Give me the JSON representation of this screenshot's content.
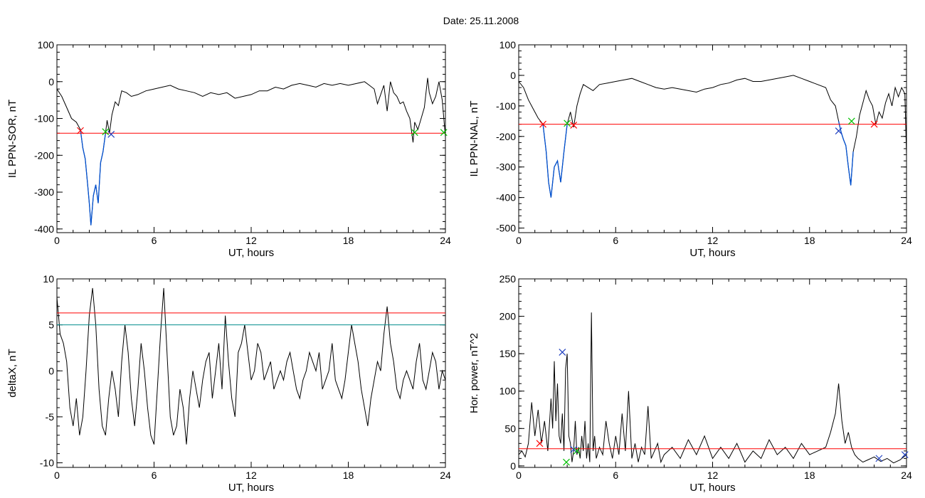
{
  "figure": {
    "date_text": "Date:  25.11.2008"
  },
  "colors": {
    "trace": "#000000",
    "threshold": "#ff0000",
    "secondary": "#008b8b",
    "highlight": "#0050d0",
    "marker_red": "#ff0000",
    "marker_green": "#00c000",
    "marker_blue": "#2040c0"
  },
  "chart_data": [
    {
      "id": "ppn-sor",
      "type": "line",
      "title": "",
      "xlabel": "UT, hours",
      "ylabel": "IL PPN-SOR, nT",
      "xlim": [
        0,
        24
      ],
      "ylim": [
        -410,
        100
      ],
      "xticks": [
        0,
        6,
        12,
        18,
        24
      ],
      "yticks": [
        100,
        0,
        -100,
        -200,
        -300,
        -400
      ],
      "hlines": [
        {
          "y": -140,
          "color": "#ff0000"
        }
      ],
      "series": [
        {
          "color": "#000000",
          "x": [
            0,
            0.3,
            0.6,
            0.9,
            1.2,
            1.45,
            1.6,
            1.75,
            1.9,
            2.0,
            2.1,
            2.25,
            2.4,
            2.55,
            2.7,
            2.85,
            3.0,
            3.1,
            3.25,
            3.4,
            3.6,
            3.8,
            4.0,
            4.3,
            4.6,
            5.0,
            5.5,
            6.0,
            6.5,
            7.0,
            7.5,
            8.0,
            8.5,
            9.0,
            9.5,
            10.0,
            10.5,
            11.0,
            11.5,
            12.0,
            12.5,
            13.0,
            13.5,
            14.0,
            14.5,
            15.0,
            15.5,
            16.0,
            16.5,
            17.0,
            17.5,
            18.0,
            18.5,
            19.0,
            19.3,
            19.6,
            19.8,
            20.0,
            20.2,
            20.4,
            20.6,
            20.8,
            21.0,
            21.2,
            21.4,
            21.6,
            21.8,
            22.0,
            22.1,
            22.3,
            22.5,
            22.7,
            22.9,
            23.0,
            23.2,
            23.4,
            23.6,
            23.8,
            24.0
          ],
          "y": [
            -20,
            -40,
            -70,
            -100,
            -110,
            -130,
            -180,
            -210,
            -280,
            -330,
            -390,
            -310,
            -280,
            -330,
            -220,
            -190,
            -140,
            -105,
            -140,
            -90,
            -55,
            -65,
            -25,
            -30,
            -40,
            -35,
            -25,
            -20,
            -15,
            -10,
            -20,
            -25,
            -30,
            -40,
            -30,
            -35,
            -30,
            -45,
            -40,
            -35,
            -25,
            -25,
            -15,
            -20,
            -10,
            -5,
            -10,
            -15,
            -5,
            -10,
            -5,
            -10,
            -5,
            0,
            -10,
            -20,
            -60,
            -35,
            -10,
            -80,
            0,
            -30,
            -40,
            -60,
            -55,
            -80,
            -100,
            -165,
            -110,
            -130,
            -100,
            -70,
            10,
            -30,
            -60,
            -40,
            0,
            -50,
            -150
          ]
        },
        {
          "color": "#0050d0",
          "x": [
            1.45,
            1.6,
            1.75,
            1.9,
            2.0,
            2.1,
            2.25,
            2.4,
            2.55,
            2.7,
            2.85,
            3.0
          ],
          "y": [
            -130,
            -180,
            -210,
            -280,
            -330,
            -390,
            -310,
            -280,
            -330,
            -220,
            -190,
            -140
          ]
        }
      ],
      "markers": [
        {
          "x": 1.45,
          "y": -133,
          "color": "#ff0000"
        },
        {
          "x": 3.0,
          "y": -136,
          "color": "#00c000"
        },
        {
          "x": 3.35,
          "y": -143,
          "color": "#2040c0"
        },
        {
          "x": 22.1,
          "y": -138,
          "color": "#00c000"
        },
        {
          "x": 23.9,
          "y": -138,
          "color": "#00c000"
        }
      ]
    },
    {
      "id": "ppn-nal",
      "type": "line",
      "title": "",
      "xlabel": "UT, hours",
      "ylabel": "IL PPN-NAL, nT",
      "xlim": [
        0,
        24
      ],
      "ylim": [
        -515,
        100
      ],
      "xticks": [
        0,
        6,
        12,
        18,
        24
      ],
      "yticks": [
        100,
        0,
        -100,
        -200,
        -300,
        -400,
        -500
      ],
      "hlines": [
        {
          "y": -160,
          "color": "#ff0000"
        }
      ],
      "series": [
        {
          "color": "#000000",
          "x": [
            0,
            0.3,
            0.6,
            0.9,
            1.2,
            1.5,
            1.7,
            1.85,
            2.0,
            2.2,
            2.4,
            2.6,
            2.8,
            3.0,
            3.2,
            3.4,
            3.6,
            3.8,
            4.0,
            4.3,
            4.6,
            5.0,
            5.5,
            6.0,
            6.5,
            7.0,
            7.5,
            8.0,
            8.5,
            9.0,
            9.5,
            10.0,
            10.5,
            11.0,
            11.5,
            12.0,
            12.5,
            13.0,
            13.5,
            14.0,
            14.5,
            15.0,
            15.5,
            16.0,
            16.5,
            17.0,
            17.5,
            18.0,
            18.5,
            19.0,
            19.3,
            19.6,
            19.8,
            19.95,
            20.1,
            20.25,
            20.4,
            20.55,
            20.7,
            20.9,
            21.1,
            21.3,
            21.5,
            21.7,
            21.9,
            22.1,
            22.3,
            22.5,
            22.7,
            22.9,
            23.1,
            23.3,
            23.5,
            23.7,
            23.9,
            24.0
          ],
          "y": [
            -20,
            -40,
            -80,
            -110,
            -140,
            -160,
            -250,
            -350,
            -400,
            -300,
            -280,
            -350,
            -250,
            -160,
            -120,
            -170,
            -100,
            -60,
            -30,
            -40,
            -50,
            -30,
            -25,
            -20,
            -15,
            -10,
            -20,
            -30,
            -40,
            -45,
            -40,
            -45,
            -50,
            -55,
            -45,
            -40,
            -30,
            -25,
            -15,
            -10,
            -20,
            -20,
            -15,
            -10,
            -5,
            0,
            -10,
            -20,
            -30,
            -40,
            -80,
            -100,
            -150,
            -185,
            -210,
            -230,
            -300,
            -360,
            -250,
            -200,
            -130,
            -90,
            -50,
            -80,
            -100,
            -160,
            -120,
            -140,
            -90,
            -60,
            -100,
            -40,
            -70,
            -40,
            -60,
            -260
          ]
        },
        {
          "color": "#0050d0",
          "x": [
            1.5,
            1.7,
            1.85,
            2.0,
            2.2,
            2.4,
            2.6,
            2.8,
            3.0
          ],
          "y": [
            -160,
            -250,
            -350,
            -400,
            -300,
            -280,
            -350,
            -250,
            -160
          ]
        },
        {
          "color": "#0050d0",
          "x": [
            19.8,
            19.95,
            20.1,
            20.25,
            20.4,
            20.55,
            20.7
          ],
          "y": [
            -150,
            -185,
            -210,
            -230,
            -300,
            -360,
            -250
          ]
        }
      ],
      "markers": [
        {
          "x": 1.5,
          "y": -160,
          "color": "#ff0000"
        },
        {
          "x": 3.0,
          "y": -157,
          "color": "#00c000"
        },
        {
          "x": 3.4,
          "y": -163,
          "color": "#ff0000"
        },
        {
          "x": 19.8,
          "y": -182,
          "color": "#2040c0"
        },
        {
          "x": 20.6,
          "y": -150,
          "color": "#00c000"
        },
        {
          "x": 22.0,
          "y": -160,
          "color": "#ff0000"
        }
      ]
    },
    {
      "id": "deltax",
      "type": "line",
      "title": "",
      "xlabel": "UT, hours",
      "ylabel": "deltaX, nT",
      "xlim": [
        0,
        24
      ],
      "ylim": [
        -10.5,
        10
      ],
      "xticks": [
        0,
        6,
        12,
        18,
        24
      ],
      "yticks": [
        10,
        5,
        0,
        -5,
        -10
      ],
      "hlines": [
        {
          "y": 6.3,
          "color": "#ff0000"
        },
        {
          "y": 5.0,
          "color": "#008b8b"
        }
      ],
      "series": [
        {
          "color": "#000000",
          "x": [
            0,
            0.2,
            0.4,
            0.6,
            0.8,
            1.0,
            1.2,
            1.4,
            1.6,
            1.8,
            2.0,
            2.2,
            2.4,
            2.6,
            2.8,
            3.0,
            3.2,
            3.4,
            3.6,
            3.8,
            4.0,
            4.2,
            4.4,
            4.6,
            4.8,
            5.0,
            5.2,
            5.4,
            5.6,
            5.8,
            6.0,
            6.2,
            6.4,
            6.6,
            6.8,
            7.0,
            7.2,
            7.4,
            7.6,
            7.8,
            8.0,
            8.2,
            8.4,
            8.6,
            8.8,
            9.0,
            9.2,
            9.4,
            9.6,
            9.8,
            10.0,
            10.2,
            10.4,
            10.6,
            10.8,
            11.0,
            11.2,
            11.4,
            11.6,
            11.8,
            12.0,
            12.2,
            12.4,
            12.6,
            12.8,
            13.0,
            13.2,
            13.4,
            13.6,
            13.8,
            14.0,
            14.2,
            14.4,
            14.6,
            14.8,
            15.0,
            15.2,
            15.4,
            15.6,
            15.8,
            16.0,
            16.2,
            16.4,
            16.6,
            16.8,
            17.0,
            17.2,
            17.4,
            17.6,
            17.8,
            18.0,
            18.2,
            18.4,
            18.6,
            18.8,
            19.0,
            19.2,
            19.4,
            19.6,
            19.8,
            20.0,
            20.2,
            20.4,
            20.6,
            20.8,
            21.0,
            21.2,
            21.4,
            21.6,
            21.8,
            22.0,
            22.2,
            22.4,
            22.6,
            22.8,
            23.0,
            23.2,
            23.4,
            23.6,
            23.8,
            24.0
          ],
          "y": [
            8,
            4,
            3,
            1,
            -4,
            -6,
            -3,
            -7,
            -5,
            0,
            6,
            9,
            5,
            -2,
            -6,
            -7,
            -3,
            0,
            -2,
            -5,
            1,
            5,
            2,
            -3,
            -6,
            -2,
            3,
            0,
            -4,
            -7,
            -8,
            -2,
            4,
            9,
            2,
            -5,
            -7,
            -6,
            -2,
            -4,
            -8,
            -3,
            0,
            -2,
            -4,
            -1,
            1,
            2,
            -3,
            0,
            3,
            -2,
            6,
            1,
            -3,
            -5,
            2,
            3,
            5,
            2,
            -1,
            0,
            3,
            2,
            -1,
            0,
            1,
            -2,
            -1,
            0,
            -1,
            1,
            2,
            0,
            -2,
            -3,
            -1,
            0,
            2,
            1,
            0,
            2,
            -2,
            -1,
            0,
            3,
            -1,
            -2,
            -3,
            -1,
            2,
            5,
            3,
            1,
            -2,
            -4,
            -6,
            -3,
            -1,
            1,
            0,
            4,
            7,
            3,
            1,
            -2,
            -3,
            -1,
            0,
            -1,
            -2,
            1,
            3,
            -1,
            -2,
            0,
            2,
            1,
            -2,
            0,
            -1
          ]
        }
      ],
      "markers": []
    },
    {
      "id": "hor-power",
      "type": "line",
      "title": "",
      "xlabel": "UT, hours",
      "ylabel": "Hor. power, nT^2",
      "xlim": [
        0,
        24
      ],
      "ylim": [
        -2,
        250
      ],
      "xticks": [
        0,
        6,
        12,
        18,
        24
      ],
      "yticks": [
        250,
        200,
        150,
        100,
        50,
        0
      ],
      "hlines": [
        {
          "y": 23,
          "color": "#ff0000"
        }
      ],
      "series": [
        {
          "color": "#000000",
          "x": [
            0,
            0.2,
            0.4,
            0.6,
            0.8,
            1.0,
            1.2,
            1.4,
            1.6,
            1.8,
            2.0,
            2.1,
            2.2,
            2.3,
            2.4,
            2.5,
            2.6,
            2.7,
            2.8,
            2.9,
            3.0,
            3.1,
            3.2,
            3.3,
            3.4,
            3.5,
            3.6,
            3.7,
            3.8,
            3.9,
            4.0,
            4.1,
            4.2,
            4.3,
            4.4,
            4.5,
            4.6,
            4.7,
            4.8,
            5.0,
            5.2,
            5.4,
            5.6,
            5.8,
            6.0,
            6.2,
            6.4,
            6.6,
            6.8,
            7.0,
            7.2,
            7.4,
            7.6,
            7.8,
            8.0,
            8.2,
            8.4,
            8.6,
            8.8,
            9.0,
            9.5,
            10.0,
            10.5,
            11.0,
            11.5,
            12.0,
            12.5,
            13.0,
            13.5,
            14.0,
            14.5,
            15.0,
            15.5,
            16.0,
            16.5,
            17.0,
            17.5,
            18.0,
            18.5,
            19.0,
            19.3,
            19.6,
            19.8,
            20.0,
            20.2,
            20.4,
            20.6,
            20.8,
            21.0,
            21.3,
            21.6,
            22.0,
            22.4,
            22.8,
            23.2,
            23.6,
            24.0
          ],
          "y": [
            15,
            20,
            12,
            30,
            85,
            40,
            75,
            30,
            60,
            20,
            90,
            50,
            140,
            60,
            110,
            40,
            30,
            70,
            20,
            130,
            150,
            40,
            30,
            5,
            20,
            60,
            15,
            25,
            10,
            40,
            20,
            60,
            10,
            30,
            5,
            205,
            20,
            40,
            10,
            25,
            15,
            60,
            30,
            10,
            40,
            15,
            70,
            20,
            100,
            10,
            30,
            5,
            25,
            15,
            80,
            10,
            20,
            30,
            5,
            15,
            25,
            10,
            35,
            15,
            40,
            10,
            25,
            10,
            30,
            5,
            20,
            10,
            35,
            15,
            25,
            10,
            30,
            15,
            20,
            25,
            45,
            70,
            110,
            60,
            30,
            45,
            25,
            15,
            10,
            5,
            8,
            12,
            6,
            10,
            4,
            8,
            15
          ]
        }
      ],
      "markers": [
        {
          "x": 1.3,
          "y": 30,
          "color": "#ff0000"
        },
        {
          "x": 2.7,
          "y": 152,
          "color": "#2040c0"
        },
        {
          "x": 2.95,
          "y": 5,
          "color": "#00c000"
        },
        {
          "x": 3.4,
          "y": 22,
          "color": "#2040c0"
        },
        {
          "x": 3.6,
          "y": 20,
          "color": "#00c000"
        },
        {
          "x": 22.3,
          "y": 10,
          "color": "#2040c0"
        },
        {
          "x": 23.9,
          "y": 15,
          "color": "#2040c0"
        }
      ]
    }
  ]
}
